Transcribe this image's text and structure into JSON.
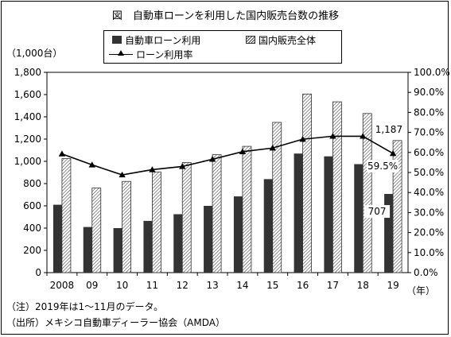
{
  "chart_data": {
    "type": "bar",
    "title": "図　自動車ローンを利用した国内販売台数の推移",
    "categories": [
      "2008",
      "09",
      "10",
      "11",
      "12",
      "13",
      "14",
      "15",
      "16",
      "17",
      "18",
      "19"
    ],
    "series": [
      {
        "name": "自動車ローン利用",
        "type": "bar",
        "axis": "left",
        "color": "#333333",
        "values": [
          610,
          410,
          400,
          465,
          525,
          600,
          685,
          840,
          1070,
          1045,
          975,
          707
        ]
      },
      {
        "name": "国内販売全体",
        "type": "bar",
        "axis": "left",
        "pattern": "hatched",
        "values": [
          1025,
          760,
          820,
          905,
          990,
          1060,
          1135,
          1350,
          1605,
          1535,
          1430,
          1187
        ]
      },
      {
        "name": "ローン利用率",
        "type": "line",
        "axis": "right",
        "marker": "triangle",
        "color": "#000000",
        "values": [
          59.3,
          53.8,
          48.8,
          51.4,
          53.0,
          56.6,
          60.4,
          62.2,
          66.6,
          68.1,
          68.1,
          59.5
        ]
      }
    ],
    "y_left": {
      "unit_label": "（1,000台）",
      "min": 0,
      "max": 1800,
      "step": 200,
      "ticks": [
        "0",
        "200",
        "400",
        "600",
        "800",
        "1,000",
        "1,200",
        "1,400",
        "1,600",
        "1,800"
      ]
    },
    "y_right": {
      "min": 0,
      "max": 100,
      "step": 10,
      "ticks": [
        "0.0%",
        "10.0%",
        "20.0%",
        "30.0%",
        "40.0%",
        "50.0%",
        "60.0%",
        "70.0%",
        "80.0%",
        "90.0%",
        "100.0%"
      ]
    },
    "x_unit_label": "（年）",
    "annotations": {
      "total_2019": "1,187",
      "loan_2019": "707",
      "rate_2019": "59.5%"
    },
    "grid": false,
    "legend_placement": "top-center"
  },
  "notes": [
    "（注）2019年は1～11月のデータ。",
    "（出所）メキシコ自動車ディーラー協会（AMDA）"
  ]
}
